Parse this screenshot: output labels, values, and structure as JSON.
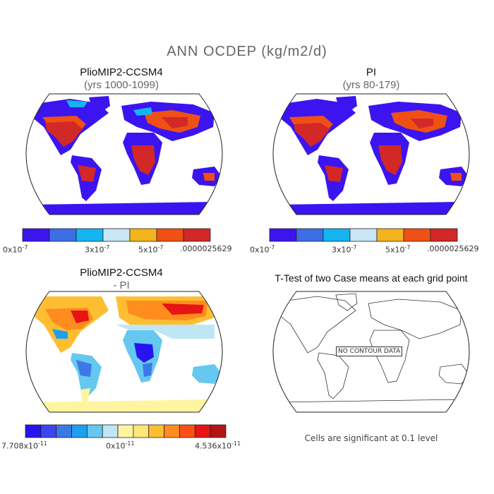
{
  "main_title": "ANN OCDEP (kg/m2/d)",
  "panels": {
    "top_left": {
      "title": "PlioMIP2-CCSM4",
      "subtitle": "(yrs 1000-1099)"
    },
    "top_right": {
      "title": "PI",
      "subtitle": "(yrs 80-179)"
    },
    "bottom_left": {
      "title": "PlioMIP2-CCSM4",
      "subtitle": "- PI"
    },
    "bottom_right": {
      "title": "T-Test of two Case means at each grid point",
      "no_data": "NO CONTOUR DATA",
      "note": "Cells are significant at 0.1 level"
    }
  },
  "colorbar_top": {
    "colors": [
      "#3c14f0",
      "#3c6ee6",
      "#14b4f0",
      "#c8e6f5",
      "#f5b41e",
      "#f05014",
      "#d22828"
    ],
    "labels": [
      "0x10",
      "3x10",
      "5x10",
      ".0000025629"
    ],
    "exponents": [
      "-7",
      "-7",
      "-7",
      ""
    ]
  },
  "colorbar_diff": {
    "colors": [
      "#2814f0",
      "#3c46f0",
      "#3c78e6",
      "#1ea0f0",
      "#64c8f0",
      "#bee6f5",
      "#fff5a0",
      "#ffe678",
      "#ffbe32",
      "#ff8c1e",
      "#ff5014",
      "#e61414",
      "#b41414"
    ],
    "labels": [
      "7.708x10",
      "0x10",
      "4.536x10"
    ],
    "exponents": [
      "-11",
      "-11",
      "-11"
    ]
  },
  "colors": {
    "land_high": "#d22828",
    "land_mid": "#f05014",
    "land_low": "#3c14f0",
    "diff_pos": "#ff8c1e",
    "diff_neg": "#3c78e6"
  }
}
